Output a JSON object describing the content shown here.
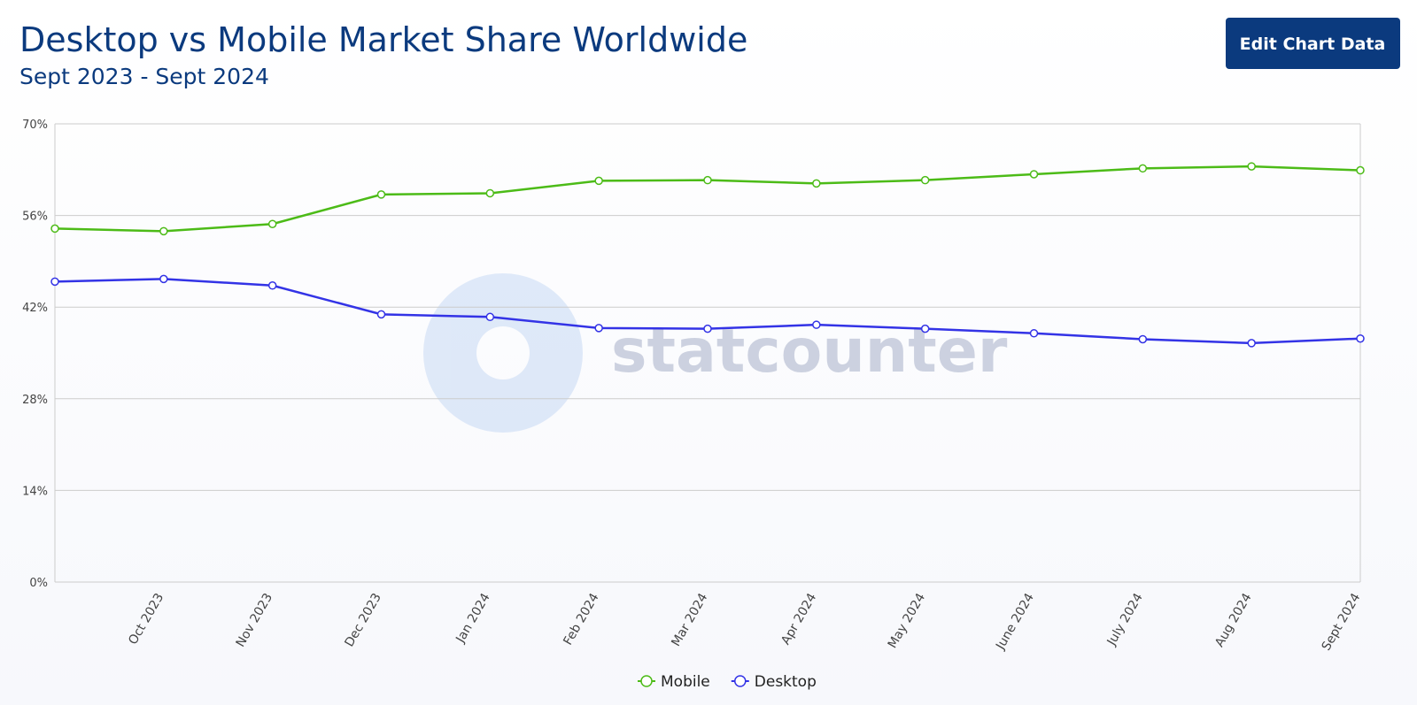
{
  "button": "Edit Chart Data",
  "watermark": "statcounter",
  "chart_data": {
    "type": "line",
    "title": "Desktop vs Mobile Market Share Worldwide",
    "subtitle": "Sept 2023 - Sept 2024",
    "categories": [
      null,
      "Oct 2023",
      "Nov 2023",
      "Dec 2023",
      "Jan 2024",
      "Feb 2024",
      "Mar 2024",
      "Apr 2024",
      "May 2024",
      "June 2024",
      "July 2024",
      "Aug 2024",
      "Sept 2024"
    ],
    "series": [
      {
        "name": "Mobile",
        "color": "#4cbb17",
        "values": [
          54.0,
          53.6,
          54.7,
          59.2,
          59.4,
          61.3,
          61.4,
          60.9,
          61.4,
          62.3,
          63.2,
          63.5,
          62.9
        ]
      },
      {
        "name": "Desktop",
        "color": "#3333e6",
        "values": [
          45.9,
          46.3,
          45.3,
          40.9,
          40.5,
          38.8,
          38.7,
          39.3,
          38.7,
          38.0,
          37.1,
          36.5,
          37.2
        ]
      }
    ],
    "ylim": [
      0,
      70
    ],
    "yticks": [
      {
        "value": 0,
        "label": "0%"
      },
      {
        "value": 14,
        "label": "14%"
      },
      {
        "value": 28,
        "label": "28%"
      },
      {
        "value": 42,
        "label": "42%"
      },
      {
        "value": 56,
        "label": "56%"
      },
      {
        "value": 70,
        "label": "70%"
      }
    ],
    "grid": true,
    "legend": "bottom"
  }
}
